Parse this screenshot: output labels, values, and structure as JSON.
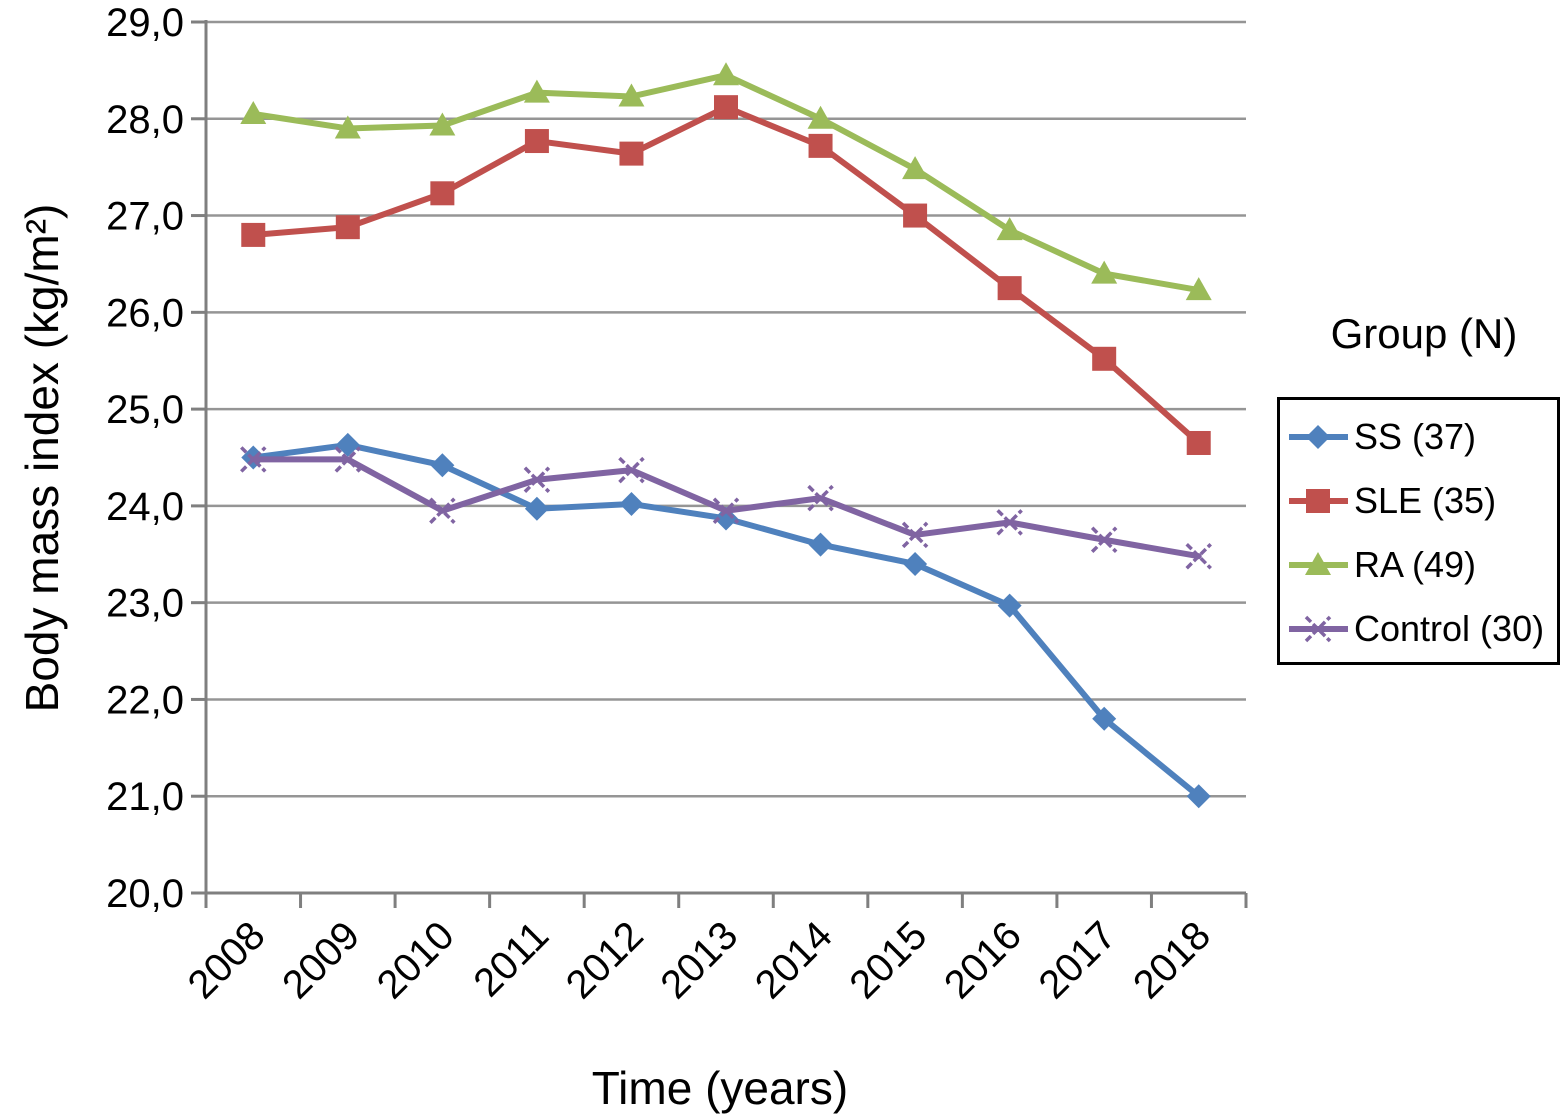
{
  "figure": {
    "y_axis_title": "Body mass index (kg/m²)",
    "x_axis_title": "Time (years)",
    "legend_title": "Group (N)"
  },
  "chart_data": {
    "type": "line",
    "xlabel": "Time (years)",
    "ylabel": "Body mass index (kg/m²)",
    "legend_title": "Group (N)",
    "legend_position": "right",
    "grid": true,
    "decimal_separator": ",",
    "categories": [
      "2008",
      "2009",
      "2010",
      "2011",
      "2012",
      "2013",
      "2014",
      "2015",
      "2016",
      "2017",
      "2018"
    ],
    "ylim": [
      20,
      29
    ],
    "ytick_step": 1.0,
    "ytick_labels": [
      "20,0",
      "21,0",
      "22,0",
      "23,0",
      "24,0",
      "25,0",
      "26,0",
      "27,0",
      "28,0",
      "29,0"
    ],
    "series": [
      {
        "name": "SS (37)",
        "marker": "diamond",
        "color": "#4F81BD",
        "values": [
          24.5,
          24.63,
          24.42,
          23.97,
          24.02,
          23.87,
          23.6,
          23.4,
          22.97,
          21.8,
          21.0
        ]
      },
      {
        "name": "SLE (35)",
        "marker": "square",
        "color": "#C0504D",
        "values": [
          26.8,
          26.88,
          27.23,
          27.77,
          27.64,
          28.12,
          27.72,
          27.0,
          26.25,
          25.52,
          24.65
        ]
      },
      {
        "name": "RA (49)",
        "marker": "triangle",
        "color": "#9BBB59",
        "values": [
          28.05,
          27.9,
          27.93,
          28.27,
          28.23,
          28.45,
          28.0,
          27.48,
          26.85,
          26.4,
          26.23
        ]
      },
      {
        "name": "Control (30)",
        "marker": "x",
        "color": "#8064A2",
        "values": [
          24.48,
          24.48,
          23.95,
          24.27,
          24.37,
          23.95,
          24.08,
          23.7,
          23.83,
          23.65,
          23.48
        ]
      }
    ]
  },
  "colors": {
    "gridline": "#959595",
    "axis": "#7f7f7f",
    "text": "#000000",
    "background": "#ffffff"
  }
}
